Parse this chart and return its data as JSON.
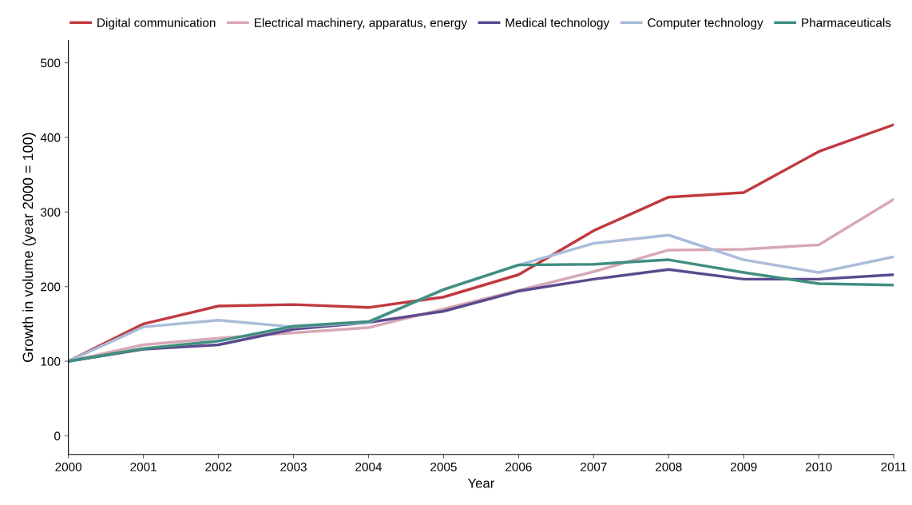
{
  "chart_data": {
    "type": "line",
    "xlabel": "Year",
    "ylabel": "Growth in volume (year 2000 = 100)",
    "x": [
      2000,
      2001,
      2002,
      2003,
      2004,
      2005,
      2006,
      2007,
      2008,
      2009,
      2010,
      2011
    ],
    "series": [
      {
        "name": "Digital communication",
        "color": "#c0393f",
        "values": [
          100,
          150,
          174,
          176,
          172,
          186,
          216,
          275,
          320,
          326,
          381,
          417
        ]
      },
      {
        "name": "Electrical machinery, apparatus, energy",
        "color": "#d8a7b5",
        "values": [
          100,
          122,
          131,
          138,
          145,
          170,
          195,
          220,
          249,
          250,
          256,
          317
        ]
      },
      {
        "name": "Medical technology",
        "color": "#5b4a8f",
        "values": [
          100,
          116,
          122,
          143,
          152,
          167,
          194,
          210,
          223,
          210,
          210,
          216
        ]
      },
      {
        "name": "Computer technology",
        "color": "#a9bcd9",
        "values": [
          100,
          146,
          155,
          146,
          152,
          196,
          229,
          258,
          269,
          236,
          219,
          240
        ]
      },
      {
        "name": "Pharmaceuticals",
        "color": "#3f8f80",
        "values": [
          100,
          117,
          127,
          147,
          153,
          196,
          229,
          230,
          236,
          219,
          204,
          202
        ]
      }
    ],
    "xlim": [
      2000,
      2011
    ],
    "xticks": [
      2000,
      2001,
      2002,
      2003,
      2004,
      2005,
      2006,
      2007,
      2008,
      2009,
      2010,
      2011
    ],
    "ylim": [
      -25,
      530
    ],
    "yticks": [
      0,
      100,
      200,
      300,
      400,
      500
    ],
    "grid": false,
    "legend": "top",
    "marker": "none",
    "line_style": "solid"
  }
}
